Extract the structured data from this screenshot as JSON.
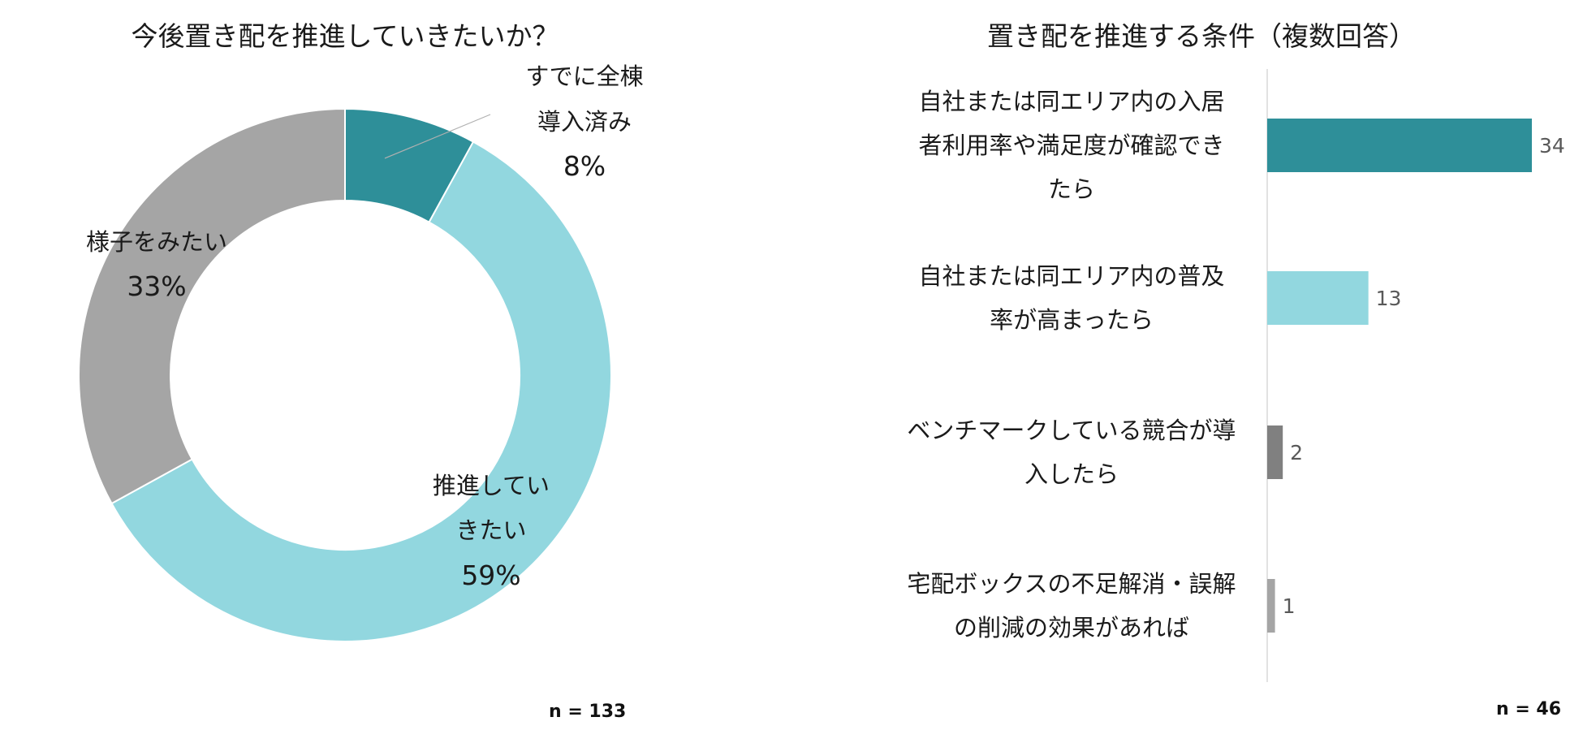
{
  "donut_title": "今後置き配を推進していきたいか？",
  "bar_title": "置き配を推進する条件（複数回答）",
  "donut_n": "n = 133",
  "bar_n": "n = 46",
  "chart_data": [
    {
      "type": "pie",
      "title": "今後置き配を推進していきたいか？",
      "donut": true,
      "slices": [
        {
          "label_lines": [
            "すでに全棟",
            "導入済み"
          ],
          "pct_label": "8%",
          "value": 8,
          "color": "#2e8f99"
        },
        {
          "label_lines": [
            "推進してい",
            "きたい"
          ],
          "pct_label": "59%",
          "value": 59,
          "color": "#92d7df"
        },
        {
          "label_lines": [
            "様子をみたい"
          ],
          "pct_label": "33%",
          "value": 33,
          "color": "#a5a5a5"
        }
      ],
      "n": "n = 133"
    },
    {
      "type": "bar",
      "orientation": "horizontal",
      "title": "置き配を推進する条件（複数回答）",
      "categories": [
        [
          "自社または同エリア内の入居",
          "者利用率や満足度が確認でき",
          "たら"
        ],
        [
          "自社または同エリア内の普及",
          "率が高まったら"
        ],
        [
          "ベンチマークしている競合が導",
          "入したら"
        ],
        [
          "宅配ボックスの不足解消・誤解",
          "の削減の効果があれば"
        ]
      ],
      "values": [
        34,
        13,
        2,
        1
      ],
      "colors": [
        "#2e8f99",
        "#92d7df",
        "#808080",
        "#a5a5a5"
      ],
      "xlim": [
        0,
        34
      ],
      "n": "n = 46"
    }
  ]
}
